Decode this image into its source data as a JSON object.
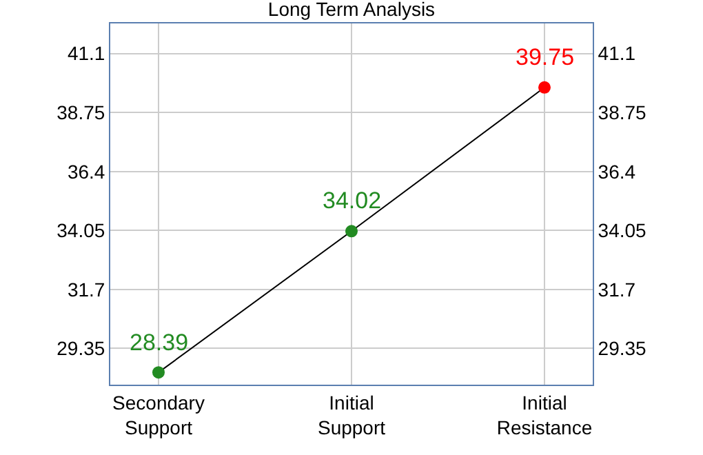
{
  "chart_data": {
    "type": "line",
    "title": "Long Term Analysis",
    "categories": [
      "Secondary Support",
      "Initial Support",
      "Initial Resistance"
    ],
    "series": [
      {
        "color": "#000000",
        "colors": [
          "#228b22",
          "#228b22",
          "#ff0000"
        ],
        "values": [
          28.39,
          34.02,
          39.75
        ]
      }
    ],
    "ylim": [
      27.9,
      42.3
    ],
    "yticks": [
      29.35,
      31.7,
      34.05,
      36.4,
      38.75,
      41.1
    ],
    "y2lim": [
      27.9,
      42.3
    ],
    "y2ticks": [
      29.35,
      31.7,
      34.05,
      36.4,
      38.75,
      41.1
    ],
    "data_labels": true,
    "grid": true,
    "legend": false,
    "marker": "circle",
    "line_style": "solid"
  }
}
